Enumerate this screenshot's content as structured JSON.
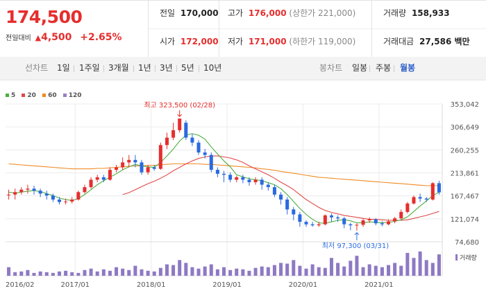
{
  "quote": {
    "price": "174,500",
    "prev_label": "전일대비",
    "change_arrow": "▲",
    "change": "4,500",
    "change_pct": "+2.65%"
  },
  "stats": {
    "prev_close_label": "전일",
    "prev_close": "170,000",
    "high_label": "고가",
    "high": "176,000",
    "upper_limit": "(상한가 221,000)",
    "volume_label": "거래량",
    "volume": "158,933",
    "open_label": "시가",
    "open": "172,000",
    "low_label": "저가",
    "low": "171,000",
    "lower_limit": "(하한가 119,000)",
    "amount_label": "거래대금",
    "amount": "27,586 백만"
  },
  "tabs": {
    "line_chart": "선차트",
    "line_items": [
      "1일",
      "1주일",
      "3개월",
      "1년",
      "3년",
      "5년",
      "10년"
    ],
    "candle_chart": "봉차트",
    "candle_items": [
      "일봉",
      "주봉",
      "월봉"
    ],
    "active_candle": "월봉"
  },
  "colors": {
    "up": "#e62e2e",
    "down": "#2a6ae0",
    "ma5": "#4caf3f",
    "ma20": "#e04848",
    "ma60": "#f08a24",
    "ma120": "#9b7cc9",
    "volume": "#8e79c4"
  },
  "chart_data": {
    "type": "candlestick",
    "legend": [
      "5",
      "20",
      "60",
      "120"
    ],
    "y_ticks": [
      "353,042",
      "306,649",
      "260,255",
      "213,861",
      "167,467",
      "121,074",
      "74,680"
    ],
    "ylim": [
      74680,
      353042
    ],
    "x_ticks": [
      "2016/02",
      "2017/01",
      "2018/01",
      "2019/01",
      "2020/01",
      "2021/01"
    ],
    "max_label": "최고 323,500 (02/28)",
    "min_label": "최저 97,300 (03/31)",
    "volume_label": "거래량",
    "candles": [
      [
        170000,
        170000,
        160000,
        180000
      ],
      [
        170000,
        175000,
        160000,
        182000
      ],
      [
        175000,
        180000,
        170000,
        185000
      ],
      [
        180000,
        182000,
        172000,
        190000
      ],
      [
        182000,
        178000,
        170000,
        188000
      ],
      [
        178000,
        172000,
        165000,
        182000
      ],
      [
        172000,
        168000,
        160000,
        178000
      ],
      [
        168000,
        160000,
        155000,
        172000
      ],
      [
        160000,
        155000,
        150000,
        165000
      ],
      [
        155000,
        156000,
        150000,
        162000
      ],
      [
        156000,
        160000,
        152000,
        165000
      ],
      [
        160000,
        175000,
        158000,
        178000
      ],
      [
        175000,
        185000,
        172000,
        190000
      ],
      [
        185000,
        200000,
        182000,
        205000
      ],
      [
        200000,
        205000,
        195000,
        210000
      ],
      [
        205000,
        200000,
        195000,
        210000
      ],
      [
        200000,
        220000,
        198000,
        225000
      ],
      [
        220000,
        225000,
        215000,
        230000
      ],
      [
        225000,
        235000,
        220000,
        245000
      ],
      [
        235000,
        240000,
        225000,
        250000
      ],
      [
        240000,
        235000,
        225000,
        250000
      ],
      [
        235000,
        215000,
        210000,
        240000
      ],
      [
        215000,
        225000,
        210000,
        230000
      ],
      [
        225000,
        222000,
        218000,
        230000
      ],
      [
        222000,
        270000,
        220000,
        275000
      ],
      [
        270000,
        285000,
        262000,
        295000
      ],
      [
        285000,
        300000,
        280000,
        315000
      ],
      [
        300000,
        323500,
        295000,
        323500
      ],
      [
        315000,
        285000,
        280000,
        320000
      ],
      [
        285000,
        275000,
        268000,
        292000
      ],
      [
        275000,
        255000,
        250000,
        280000
      ],
      [
        255000,
        250000,
        243000,
        262000
      ],
      [
        250000,
        220000,
        215000,
        255000
      ],
      [
        220000,
        212000,
        205000,
        225000
      ],
      [
        212000,
        210000,
        195000,
        218000
      ],
      [
        210000,
        200000,
        195000,
        215000
      ],
      [
        200000,
        205000,
        195000,
        208000
      ],
      [
        205000,
        200000,
        193000,
        210000
      ],
      [
        200000,
        195000,
        188000,
        205000
      ],
      [
        195000,
        200000,
        190000,
        205000
      ],
      [
        200000,
        190000,
        180000,
        205000
      ],
      [
        190000,
        185000,
        178000,
        195000
      ],
      [
        185000,
        170000,
        165000,
        190000
      ],
      [
        170000,
        160000,
        150000,
        175000
      ],
      [
        160000,
        140000,
        130000,
        165000
      ],
      [
        140000,
        130000,
        118000,
        145000
      ],
      [
        130000,
        115000,
        105000,
        135000
      ],
      [
        115000,
        110000,
        105000,
        118000
      ],
      [
        110000,
        108000,
        105000,
        115000
      ],
      [
        108000,
        110000,
        105000,
        115000
      ],
      [
        110000,
        128000,
        108000,
        130000
      ],
      [
        128000,
        124000,
        115000,
        132000
      ],
      [
        124000,
        122000,
        115000,
        128000
      ],
      [
        122000,
        110000,
        102000,
        125000
      ],
      [
        110000,
        108000,
        98000,
        113000
      ],
      [
        108000,
        109000,
        97300,
        112000
      ],
      [
        109000,
        118000,
        105000,
        122000
      ],
      [
        118000,
        120000,
        113000,
        124000
      ],
      [
        120000,
        112000,
        108000,
        122000
      ],
      [
        112000,
        110000,
        106000,
        116000
      ],
      [
        110000,
        116000,
        108000,
        120000
      ],
      [
        116000,
        122000,
        112000,
        125000
      ],
      [
        122000,
        135000,
        120000,
        140000
      ],
      [
        135000,
        152000,
        132000,
        155000
      ],
      [
        152000,
        165000,
        150000,
        168000
      ],
      [
        165000,
        162000,
        155000,
        172000
      ],
      [
        162000,
        160000,
        155000,
        165000
      ],
      [
        160000,
        193000,
        158000,
        195000
      ],
      [
        193000,
        174500,
        170000,
        198000
      ]
    ],
    "ma5": [
      175000,
      173000,
      175000,
      177000,
      178000,
      176000,
      172000,
      168000,
      163000,
      160000,
      158000,
      162000,
      170000,
      180000,
      190000,
      198000,
      205000,
      212000,
      220000,
      226000,
      231000,
      228000,
      226000,
      225000,
      235000,
      248000,
      262000,
      278000,
      290000,
      293000,
      290000,
      282000,
      266000,
      252000,
      238000,
      226000,
      210000,
      206000,
      202000,
      200000,
      198000,
      194000,
      190000,
      182000,
      170000,
      156000,
      142000,
      130000,
      120000,
      113000,
      112000,
      115000,
      118000,
      119000,
      117000,
      113000,
      113000,
      115000,
      114000,
      113000,
      114000,
      116000,
      119000,
      125000,
      136000,
      147000,
      157000,
      168000,
      175000
    ],
    "ma20": [
      null,
      null,
      null,
      null,
      null,
      null,
      null,
      null,
      null,
      null,
      null,
      null,
      null,
      null,
      null,
      null,
      null,
      null,
      170000,
      174000,
      180000,
      186000,
      192000,
      197000,
      203000,
      210000,
      218000,
      225000,
      232000,
      238000,
      243000,
      246000,
      248000,
      248000,
      246000,
      244000,
      240000,
      235000,
      228000,
      222000,
      216000,
      210000,
      203000,
      195000,
      188000,
      180000,
      170000,
      160000,
      152000,
      144000,
      138000,
      134000,
      131000,
      128000,
      126000,
      124000,
      122000,
      120000,
      120000,
      119000,
      118000,
      118000,
      118000,
      119000,
      122000,
      125000,
      128000,
      132000,
      136000
    ],
    "ma60": [
      232000,
      231000,
      230000,
      229000,
      228000,
      227000,
      226000,
      225000,
      224000,
      223000,
      222000,
      222000,
      222000,
      222000,
      223000,
      223000,
      224000,
      225000,
      226000,
      227000,
      228000,
      228000,
      229000,
      229000,
      230000,
      231000,
      232000,
      232000,
      232000,
      232000,
      232000,
      231000,
      231000,
      230000,
      229000,
      228000,
      227000,
      226000,
      225000,
      224000,
      222000,
      221000,
      219000,
      217000,
      215000,
      213000,
      211000,
      209000,
      207000,
      205000,
      204000,
      203000,
      202000,
      201000,
      200000,
      199000,
      198000,
      197000,
      196000,
      195000,
      194000,
      193000,
      192000,
      191000,
      190000,
      189000,
      188000,
      188000,
      188000
    ],
    "volume": [
      12,
      5,
      6,
      8,
      4,
      6,
      5,
      4,
      6,
      7,
      5,
      4,
      8,
      10,
      6,
      9,
      7,
      12,
      10,
      8,
      14,
      9,
      7,
      6,
      11,
      16,
      15,
      22,
      18,
      12,
      10,
      13,
      16,
      9,
      12,
      8,
      10,
      9,
      7,
      11,
      13,
      12,
      15,
      18,
      17,
      22,
      14,
      10,
      16,
      12,
      11,
      25,
      18,
      13,
      21,
      28,
      12,
      16,
      14,
      12,
      15,
      18,
      14,
      32,
      25,
      34,
      22,
      18,
      30
    ]
  }
}
